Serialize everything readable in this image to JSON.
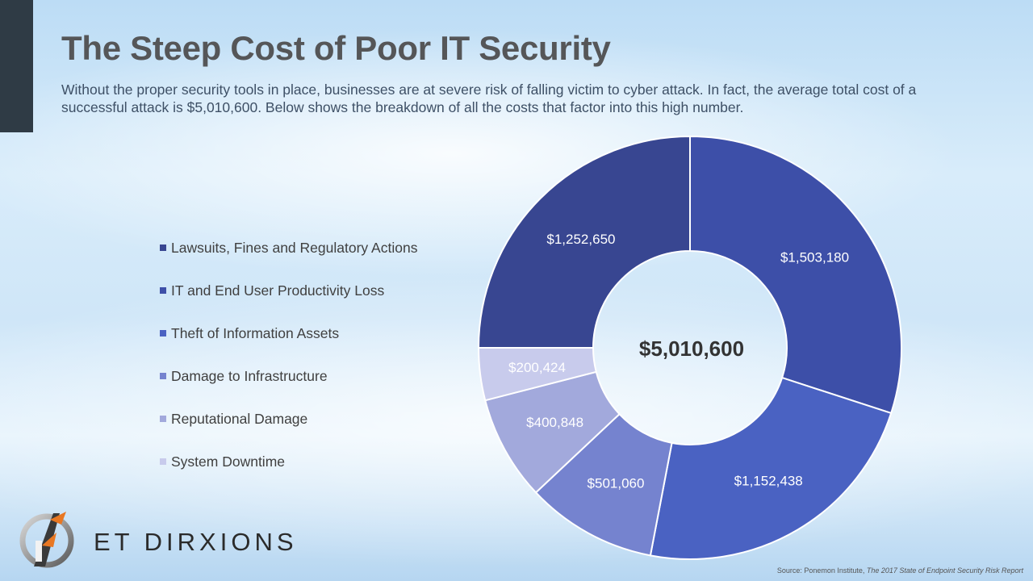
{
  "header": {
    "title": "The Steep Cost of Poor IT Security",
    "subtitle": "Without the proper security tools in place, businesses are at severe risk of falling victim to cyber attack.  In fact, the average total cost of a successful attack is $5,010,600. Below shows the breakdown of all the costs that factor into this high number."
  },
  "chart_data": {
    "type": "pie",
    "variant": "donut",
    "center_label": "$5,010,600",
    "legend_position": "left",
    "categories": [
      "System Downtime",
      "IT and End User Productivity Loss",
      "Theft of Information Assets",
      "Damage to Infrastructure",
      "Reputational Damage",
      "Lawsuits, Fines and Regulatory Actions"
    ],
    "values": [
      1503180,
      1152438,
      501060,
      400848,
      200424,
      1252650
    ],
    "data_labels": [
      "$1,503,180",
      "$1,152,438",
      "$501,060",
      "$400,848",
      "$200,424",
      "$1,252,650"
    ],
    "colors": [
      "#3d4fa8",
      "#4a62c2",
      "#7583cf",
      "#a2a9dc",
      "#c8cbec",
      "#384691"
    ],
    "legend_colors": [
      "#384691",
      "#3d4fa8",
      "#4a62c2",
      "#7583cf",
      "#a2a9dc",
      "#c8cbec"
    ]
  },
  "logo": {
    "text": "ET DIRXIONS",
    "icon": "lightning-arrow-logo-icon"
  },
  "source": {
    "prefix": "Source: Ponemon Institute, ",
    "title": "The 2017 State of Endpoint Security Risk Report"
  }
}
